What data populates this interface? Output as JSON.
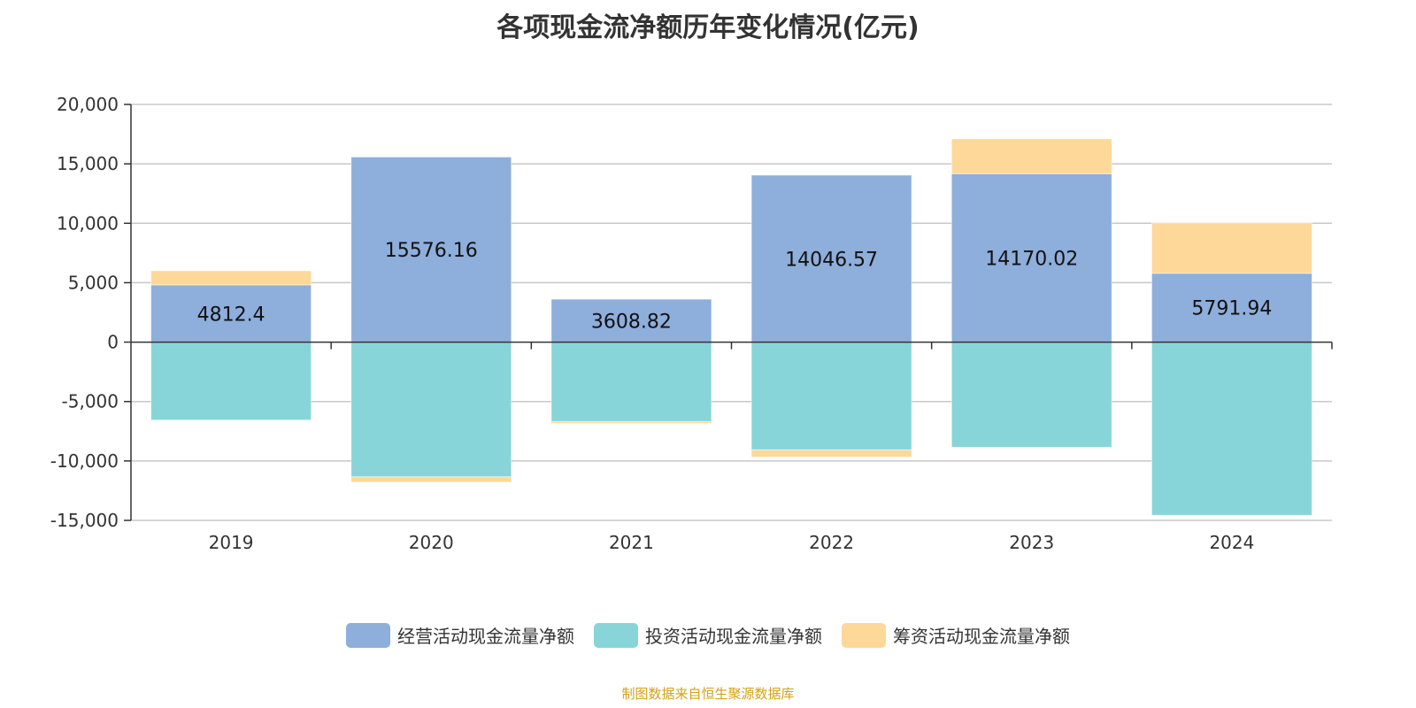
{
  "chart_data": {
    "type": "bar",
    "stacked": true,
    "title": "各项现金流净额历年变化情况(亿元)",
    "categories": [
      "2019",
      "2020",
      "2021",
      "2022",
      "2023",
      "2024"
    ],
    "ylim": [
      -15000,
      20000
    ],
    "yticks": [
      20000,
      15000,
      10000,
      5000,
      0,
      -5000,
      -10000,
      -15000
    ],
    "ytick_labels": [
      "20,000",
      "15,000",
      "10,000",
      "5,000",
      "0",
      "-5,000",
      "-10,000",
      "-15,000"
    ],
    "grid": true,
    "legend_position": "bottom",
    "series": [
      {
        "name": "经营活动现金流量净额",
        "color": "#8eaedb",
        "values": [
          4812.4,
          15576.16,
          3608.82,
          14046.57,
          14170.02,
          5791.94
        ],
        "labels": [
          "4812.4",
          "15576.16",
          "3608.82",
          "14046.57",
          "14170.02",
          "5791.94"
        ]
      },
      {
        "name": "投资活动现金流量净额",
        "color": "#87d5d9",
        "values": [
          -6560,
          -11340,
          -6690,
          -9070,
          -8850,
          -14570
        ]
      },
      {
        "name": "筹资活动现金流量净额",
        "color": "#fed899",
        "values": [
          1190,
          -440,
          -150,
          -600,
          2930,
          4250
        ]
      }
    ]
  },
  "footer": "制图数据来自恒生聚源数据库"
}
